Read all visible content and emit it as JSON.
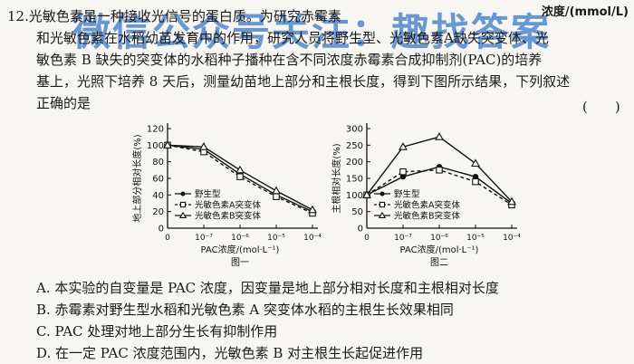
{
  "watermark": "微信公众号关注：趣找答案",
  "top_right_unit": "浓度/(mmol/L)",
  "question": {
    "number": "12.",
    "line1": "光敏色素是一种接收光信号的蛋白质。为研究赤霉素",
    "line2": "和光敏色素在水稻幼苗发育中的作用，研究人员将野生型、光敏色素A缺失突变体、光",
    "line3": "敏色素 B 缺失的突变体的水稻种子播种在含不同浓度赤霉素合成抑制剂(PAC)的培养",
    "line4": "基上，光照下培养 8 天后，测量幼苗地上部分和主根长度，得到下图所示结果，下列叙述",
    "line5": "正确的是",
    "answer_paren": "(　　)"
  },
  "chart_data": [
    {
      "type": "line",
      "caption": "图一",
      "xlabel": "PAC浓度/(mol·L⁻¹)",
      "ylabel": "地上部分相对长度(%)",
      "categories": [
        "0",
        "10⁻⁷",
        "10⁻⁶",
        "10⁻⁵",
        "10⁻⁴"
      ],
      "ylim": [
        0,
        120
      ],
      "yticks": [
        0,
        20,
        40,
        60,
        80,
        100,
        120
      ],
      "legend": [
        "野生型",
        "光敏色素A突变体",
        "光敏色素B突变体"
      ],
      "series": [
        {
          "name": "野生型",
          "values": [
            100,
            95,
            65,
            40,
            20
          ],
          "marker": "dot",
          "dash": "solid"
        },
        {
          "name": "光敏色素A突变体",
          "values": [
            100,
            92,
            62,
            38,
            18
          ],
          "marker": "square",
          "dash": "dashed"
        },
        {
          "name": "光敏色素B突变体",
          "values": [
            100,
            98,
            70,
            45,
            22
          ],
          "marker": "triangle",
          "dash": "solid"
        }
      ]
    },
    {
      "type": "line",
      "caption": "图二",
      "xlabel": "PAC浓度/(mol·L⁻¹)",
      "ylabel": "主根相对长度(%)",
      "categories": [
        "0",
        "10⁻⁷",
        "10⁻⁶",
        "10⁻⁵",
        "10⁻⁴"
      ],
      "ylim": [
        0,
        300
      ],
      "yticks": [
        0,
        50,
        100,
        150,
        200,
        250,
        300
      ],
      "legend": [
        "野生型",
        "光敏色素A突变体",
        "光敏色素B突变体"
      ],
      "series": [
        {
          "name": "野生型",
          "values": [
            100,
            155,
            185,
            155,
            75
          ],
          "marker": "dot",
          "dash": "solid"
        },
        {
          "name": "光敏色素A突变体",
          "values": [
            100,
            170,
            175,
            140,
            70
          ],
          "marker": "square",
          "dash": "dashed"
        },
        {
          "name": "光敏色素B突变体",
          "values": [
            100,
            245,
            275,
            195,
            80
          ],
          "marker": "triangle",
          "dash": "solid"
        }
      ]
    }
  ],
  "options": [
    "A. 本实验的自变量是 PAC 浓度，因变量是地上部分相对长度和主根相对长度",
    "B. 赤霉素对野生型水稻和光敏色素 A 突变体水稻的主根生长效果相同",
    "C. PAC 处理对地上部分生长有抑制作用",
    "D. 在一定 PAC 浓度范围内，光敏色素 B 对主根生长起促进作用"
  ]
}
